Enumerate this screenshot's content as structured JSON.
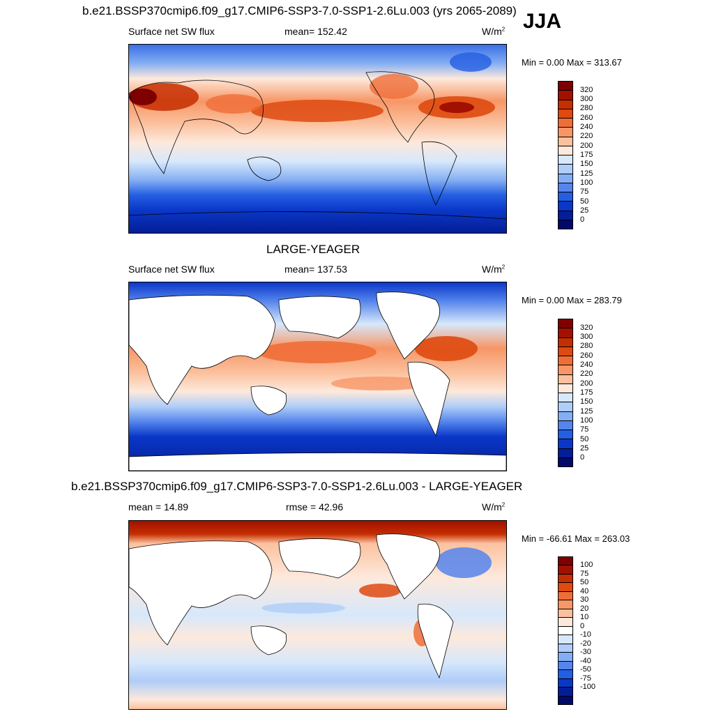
{
  "figure": {
    "top_title": "b.e21.BSSP370cmip6.f09_g17.CMIP6-SSP3-7.0-SSP1-2.6Lu.003 (yrs 2065-2089)",
    "season": "JJA"
  },
  "panels": [
    {
      "id": "model",
      "left_label": "Surface net SW flux",
      "center_label": "mean= 152.42",
      "units": "W/m",
      "units_sup": "2",
      "min_max": "Min =   0.00 Max = 313.67",
      "colorbar_labels": [
        "320",
        "300",
        "280",
        "260",
        "240",
        "220",
        "200",
        "175",
        "150",
        "125",
        "100",
        "75",
        "50",
        "25",
        "0"
      ]
    },
    {
      "id": "obs",
      "title": "LARGE-YEAGER",
      "left_label": "Surface net SW flux",
      "center_label": "mean= 137.53",
      "units": "W/m",
      "units_sup": "2",
      "min_max": "Min =   0.00 Max = 283.79",
      "colorbar_labels": [
        "320",
        "300",
        "280",
        "260",
        "240",
        "220",
        "200",
        "175",
        "150",
        "125",
        "100",
        "75",
        "50",
        "25",
        "0"
      ]
    },
    {
      "id": "diff",
      "title": "b.e21.BSSP370cmip6.f09_g17.CMIP6-SSP3-7.0-SSP1-2.6Lu.003 - LARGE-YEAGER",
      "left_label": "mean =  14.89",
      "center_label": "rmse =  42.96",
      "units": "W/m",
      "units_sup": "2",
      "min_max": "Min = -66.61 Max = 263.03",
      "colorbar_labels": [
        "100",
        "75",
        "50",
        "40",
        "30",
        "20",
        "10",
        "0",
        "-10",
        "-20",
        "-30",
        "-40",
        "-50",
        "-75",
        "-100"
      ]
    }
  ],
  "colors": {
    "abs_scale": [
      "#7f0000",
      "#a11000",
      "#c52e00",
      "#de4a10",
      "#ef6e38",
      "#f79666",
      "#fbc19e",
      "#fde9dc",
      "#d7e8fb",
      "#afcdf8",
      "#84aef3",
      "#5585ec",
      "#245ee2",
      "#0a37c8",
      "#041e96",
      "#010a6a"
    ],
    "diff_scale": [
      "#7f0000",
      "#a11000",
      "#c52e00",
      "#de4a10",
      "#ef6e38",
      "#f79666",
      "#fbc19e",
      "#fde9dc",
      "#ffffff",
      "#d7e8fb",
      "#afcdf8",
      "#84aef3",
      "#5585ec",
      "#245ee2",
      "#0a37c8",
      "#041e96",
      "#010a6a"
    ],
    "land": "#ffffff",
    "coast": "#000000"
  }
}
